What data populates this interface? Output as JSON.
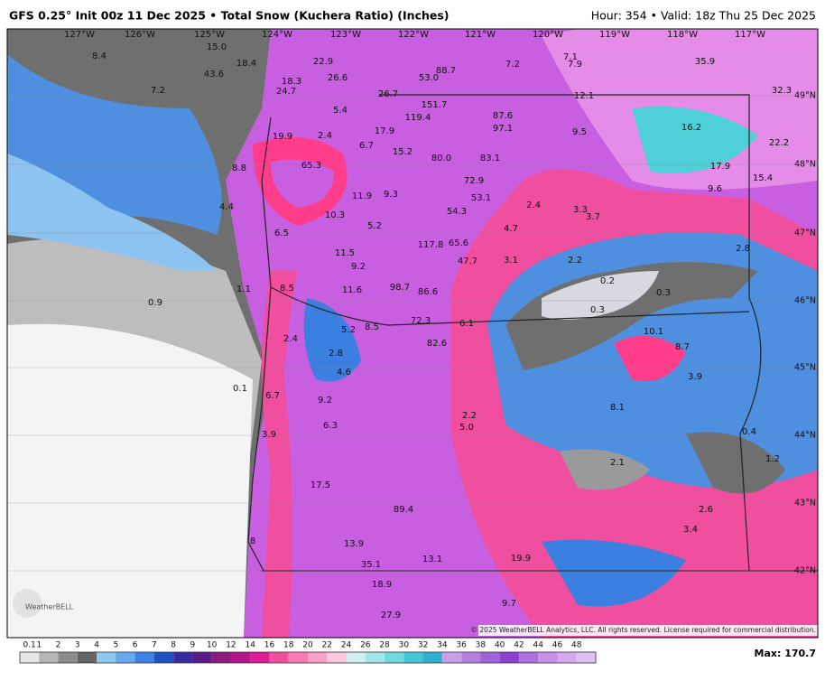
{
  "header": {
    "title": "GFS 0.25° Init 00z 11 Dec 2025 • Total Snow (Kuchera Ratio) (Inches)",
    "valid": "Hour: 354 • Valid: 18z Thu 25 Dec 2025"
  },
  "longitudes": [
    "127°W",
    "126°W",
    "125°W",
    "124°W",
    "123°W",
    "122°W",
    "121°W",
    "120°W",
    "119°W",
    "118°W",
    "117°W"
  ],
  "latitudes": [
    "49°N",
    "48°N",
    "47°N",
    "46°N",
    "45°N",
    "44°N",
    "43°N",
    "42°N"
  ],
  "map_labels": [
    "8.4",
    "15.0",
    "18.4",
    "22.9",
    "18.3",
    "24.7",
    "43.6",
    "7.2",
    "26.6",
    "53.0",
    "88.7",
    "7.2",
    "7.1",
    "7.9",
    "35.9",
    "26.7",
    "32.3",
    "151.7",
    "5.4",
    "119.4",
    "87.6",
    "12.1",
    "97.1",
    "16.2",
    "9.5",
    "19.9",
    "2.4",
    "17.9",
    "6.7",
    "15.2",
    "80.0",
    "83.1",
    "22.2",
    "8.8",
    "65.3",
    "17.9",
    "72.9",
    "15.4",
    "9.6",
    "11.9",
    "9.3",
    "53.1",
    "2.4",
    "4.4",
    "10.3",
    "54.3",
    "3.3",
    "3.7",
    "5.2",
    "4.7",
    "6.5",
    "117.8",
    "65.6",
    "11.5",
    "2.8",
    "9.2",
    "47.7",
    "3.1",
    "2.2",
    "0.2",
    "1.1",
    "8.5",
    "11.6",
    "98.7",
    "86.6",
    "0.9",
    "0.3",
    "0.3",
    "72.3",
    "6.1",
    "5.2",
    "8.5",
    "10.1",
    "2.4",
    "82.6",
    "8.7",
    "2.8",
    "4.6",
    "3.9",
    "0.1",
    "6.7",
    "9.2",
    "8.1",
    "2.2",
    "6.3",
    "5.0",
    "0.4",
    "3.9",
    "1.2",
    "2.1",
    "17.5",
    "89.4",
    "2.6",
    "3.4",
    "8",
    "13.9",
    "35.1",
    "13.1",
    "19.9",
    "18.9",
    "9.7",
    "27.9"
  ],
  "colorbar": {
    "labels": [
      "0.1",
      "1",
      "2",
      "3",
      "4",
      "5",
      "6",
      "7",
      "8",
      "9",
      "10",
      "12",
      "14",
      "16",
      "18",
      "20",
      "22",
      "24",
      "26",
      "28",
      "30",
      "32",
      "34",
      "36",
      "38",
      "40",
      "42",
      "44",
      "46",
      "48"
    ]
  },
  "max_label": "Max: 170.7",
  "copyright": "© 2025 WeatherBELL Analytics, LLC. All rights reserved. License required for commercial distribution.",
  "logo": "WeatherBELL"
}
